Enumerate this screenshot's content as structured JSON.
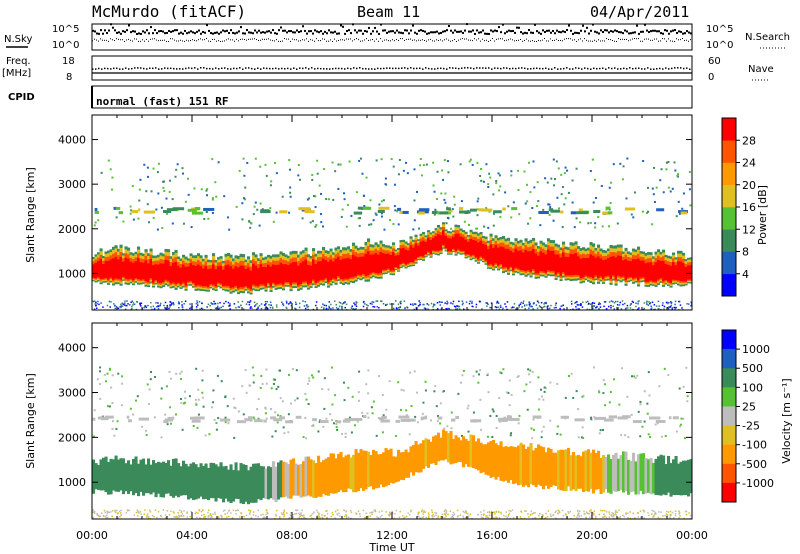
{
  "header": {
    "station": "McMurdo (fitACF)",
    "beam": "Beam 11",
    "date": "04/Apr/2011"
  },
  "strip_nsky": {
    "left_label": "N.Sky",
    "right_label": "N.Search",
    "left_ticks": [
      "10^5",
      "10^0"
    ],
    "right_ticks": [
      "10^5",
      "10^0"
    ]
  },
  "strip_freq": {
    "left_label_top": "Freq.",
    "left_label_bottom": "[MHz]",
    "right_label": "Nave",
    "left_ticks": [
      "18",
      "8"
    ],
    "right_ticks": [
      "60",
      "0"
    ]
  },
  "strip_cpid": {
    "label": "CPID",
    "program": "normal (fast) 151 RF"
  },
  "chart_data": [
    {
      "type": "heatmap",
      "quantity": "Power",
      "ylabel": "Slant Range [km]",
      "xlabel": "Time UT",
      "y_ticks": [
        1000,
        2000,
        3000,
        4000
      ],
      "ylim": [
        180,
        4550
      ],
      "x_ticks": [
        "00:00",
        "04:00",
        "08:00",
        "12:00",
        "16:00",
        "20:00",
        "00:00"
      ],
      "xlim_hours": [
        0,
        24
      ],
      "colorbar": {
        "label": "Power [dB]",
        "ticks": [
          "4",
          "8",
          "12",
          "16",
          "20",
          "24",
          "28"
        ],
        "colors": [
          "#0000ff",
          "#1f5fbf",
          "#3a8a5a",
          "#56c233",
          "#e0c020",
          "#ff9900",
          "#ff5500",
          "#ff0000"
        ]
      },
      "band_hours": [
        0,
        1,
        2,
        3,
        4,
        5,
        6,
        7,
        8,
        9,
        10,
        11,
        12,
        13,
        14,
        15,
        16,
        17,
        18,
        19,
        20,
        21,
        22,
        23,
        24
      ],
      "band_lower_km": [
        820,
        780,
        760,
        700,
        660,
        640,
        560,
        620,
        660,
        700,
        800,
        850,
        1000,
        1250,
        1500,
        1350,
        1100,
        950,
        900,
        850,
        800,
        780,
        760,
        740,
        720
      ],
      "band_upper_km": [
        1450,
        1550,
        1500,
        1450,
        1400,
        1380,
        1350,
        1420,
        1460,
        1500,
        1600,
        1700,
        1600,
        1800,
        2050,
        1950,
        1800,
        1750,
        1700,
        1650,
        1600,
        1600,
        1500,
        1450,
        1400
      ]
    },
    {
      "type": "heatmap",
      "quantity": "Velocity",
      "ylabel": "Slant Range [km]",
      "xlabel": "Time UT",
      "y_ticks": [
        1000,
        2000,
        3000,
        4000
      ],
      "ylim": [
        180,
        4550
      ],
      "x_ticks": [
        "00:00",
        "04:00",
        "08:00",
        "12:00",
        "16:00",
        "20:00",
        "00:00"
      ],
      "xlim_hours": [
        0,
        24
      ],
      "colorbar": {
        "label": "Velocity [m s⁻¹]",
        "ticks": [
          "1000",
          "500",
          "100",
          "25",
          "-25",
          "-100",
          "-500",
          "-1000"
        ],
        "colors": [
          "#0000ff",
          "#1f5fbf",
          "#3a8a5a",
          "#56c233",
          "#bdbdbd",
          "#e0c020",
          "#ff9900",
          "#ff5500",
          "#ff0000"
        ]
      },
      "band_hours": [
        0,
        1,
        2,
        3,
        4,
        5,
        6,
        7,
        8,
        9,
        10,
        11,
        12,
        13,
        14,
        15,
        16,
        17,
        18,
        19,
        20,
        21,
        22,
        23,
        24
      ],
      "band_lower_km": [
        800,
        760,
        740,
        700,
        660,
        620,
        560,
        600,
        650,
        700,
        800,
        850,
        1000,
        1250,
        1500,
        1350,
        1100,
        950,
        900,
        850,
        800,
        780,
        760,
        740,
        700
      ],
      "band_upper_km": [
        1450,
        1500,
        1480,
        1450,
        1400,
        1380,
        1350,
        1400,
        1450,
        1500,
        1600,
        1700,
        1650,
        1850,
        2100,
        2000,
        1850,
        1800,
        1750,
        1700,
        1650,
        1600,
        1550,
        1500,
        1450
      ],
      "band_color_change_hour": 7.5
    }
  ]
}
